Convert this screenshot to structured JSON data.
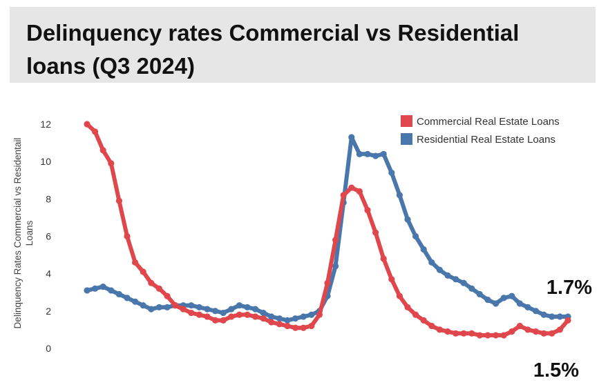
{
  "chart_data": {
    "type": "line",
    "title": "Delinquency rates Commercial vs Residential loans (Q3 2024)",
    "ylabel": "Delinquency Rates Commercial vs Residentail Loans",
    "ylim": [
      0,
      12
    ],
    "yticks": [
      0,
      2,
      4,
      6,
      8,
      10,
      12
    ],
    "grid": false,
    "legend_position": "top-right",
    "series": [
      {
        "name": "Commercial Real Estate Loans",
        "color": "#e0474c",
        "end_label": "1.5%",
        "values": [
          12.0,
          11.6,
          10.6,
          9.9,
          7.9,
          6.0,
          4.6,
          4.1,
          3.5,
          3.2,
          2.8,
          2.3,
          2.1,
          1.9,
          1.8,
          1.7,
          1.5,
          1.5,
          1.7,
          1.8,
          1.8,
          1.7,
          1.6,
          1.4,
          1.3,
          1.2,
          1.1,
          1.1,
          1.2,
          1.8,
          3.5,
          5.8,
          8.2,
          8.6,
          8.4,
          7.4,
          6.2,
          4.8,
          3.7,
          2.8,
          2.2,
          1.8,
          1.5,
          1.2,
          1.0,
          0.9,
          0.8,
          0.8,
          0.8,
          0.7,
          0.7,
          0.7,
          0.7,
          0.9,
          1.2,
          1.0,
          0.9,
          0.8,
          0.8,
          1.0,
          1.5
        ]
      },
      {
        "name": "Residential Real Estate Loans",
        "color": "#4a77ab",
        "end_label": "1.7%",
        "values": [
          3.1,
          3.2,
          3.3,
          3.1,
          2.9,
          2.7,
          2.5,
          2.3,
          2.1,
          2.2,
          2.2,
          2.3,
          2.3,
          2.3,
          2.2,
          2.1,
          2.0,
          1.9,
          2.1,
          2.3,
          2.2,
          2.1,
          1.9,
          1.7,
          1.6,
          1.5,
          1.6,
          1.7,
          1.8,
          2.0,
          2.8,
          4.4,
          7.8,
          11.3,
          10.4,
          10.4,
          10.3,
          10.4,
          9.4,
          8.2,
          6.9,
          6.0,
          5.3,
          4.6,
          4.2,
          3.9,
          3.7,
          3.5,
          3.2,
          2.9,
          2.6,
          2.4,
          2.7,
          2.8,
          2.4,
          2.2,
          2.0,
          1.8,
          1.7,
          1.7,
          1.7
        ]
      }
    ]
  }
}
